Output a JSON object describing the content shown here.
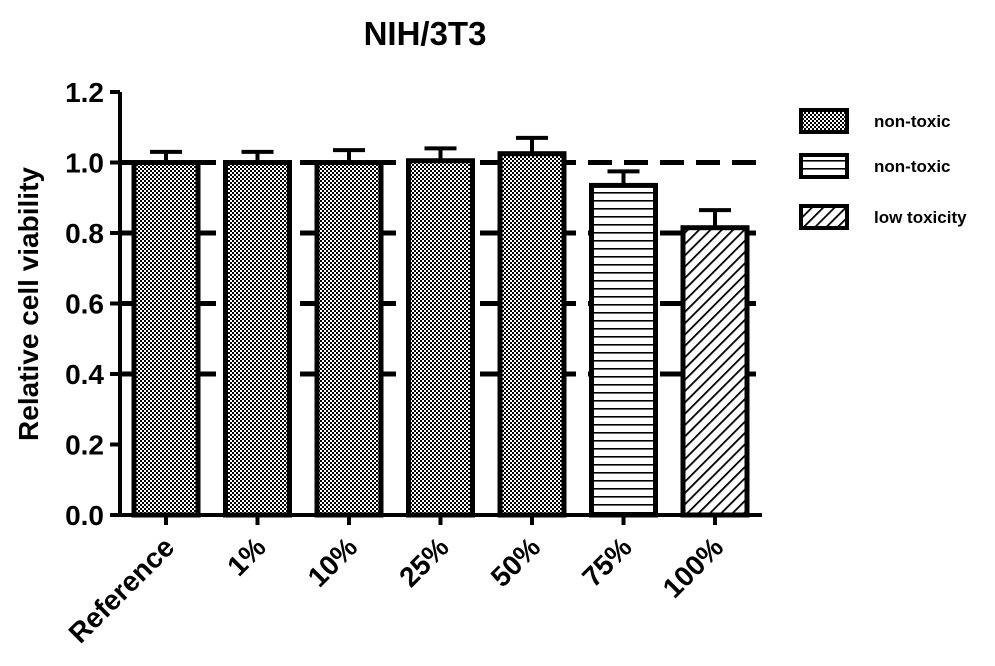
{
  "chart_data": {
    "type": "bar",
    "title": "NIH/3T3",
    "xlabel": "",
    "ylabel": "Relative cell viability",
    "ylim": [
      0,
      1.2
    ],
    "yticks": [
      "0.0",
      "0.2",
      "0.4",
      "0.6",
      "0.8",
      "1.0",
      "1.2"
    ],
    "categories": [
      "Reference",
      "1%",
      "10%",
      "25%",
      "50%",
      "75%",
      "100%"
    ],
    "values": [
      1.0,
      1.0,
      1.0,
      1.005,
      1.025,
      0.935,
      0.815
    ],
    "errors": [
      0.03,
      0.03,
      0.035,
      0.035,
      0.045,
      0.04,
      0.05
    ],
    "bar_groups": [
      "non-toxic",
      "non-toxic",
      "non-toxic",
      "non-toxic",
      "non-toxic",
      "non-toxic-2",
      "low-toxicity"
    ],
    "reference_lines": [
      1.0,
      0.8,
      0.6,
      0.4
    ],
    "grid": false,
    "legend_position": "top-right",
    "legend": [
      {
        "label": "non-toxic",
        "pattern": "checker"
      },
      {
        "label": "non-toxic",
        "pattern": "horizontal-lines"
      },
      {
        "label": "low toxicity",
        "pattern": "diagonal-lines"
      }
    ],
    "colors": {
      "bar_stroke": "#000000",
      "pattern": "#000000",
      "background": "#ffffff"
    }
  }
}
